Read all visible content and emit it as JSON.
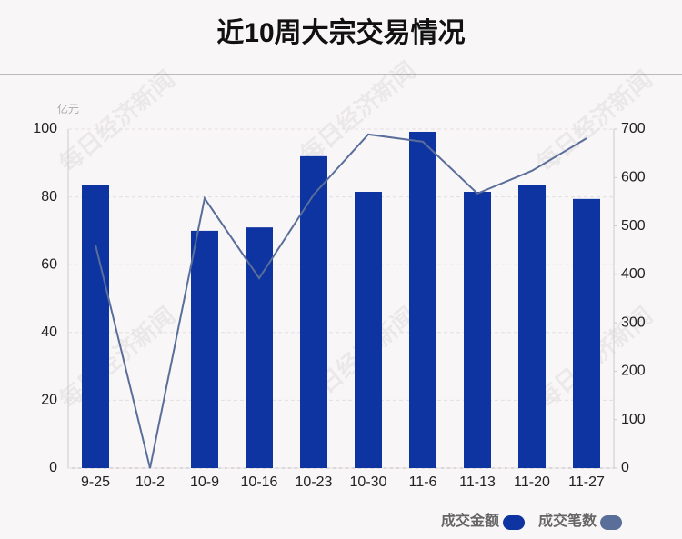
{
  "chart_data": {
    "type": "bar",
    "title": "近10周大宗交易情况",
    "y_unit": "亿元",
    "watermark": "每日经济新闻",
    "categories": [
      "9-25",
      "10-2",
      "10-9",
      "10-16",
      "10-23",
      "10-30",
      "11-6",
      "11-13",
      "11-20",
      "11-27"
    ],
    "series": [
      {
        "name": "成交金额",
        "type": "bar",
        "color": "#0d34a0",
        "values": [
          83.4,
          0,
          70.0,
          71.0,
          92.0,
          81.5,
          99.2,
          81.5,
          83.4,
          79.4
        ]
      },
      {
        "name": "成交笔数",
        "type": "line",
        "axis": "y2",
        "color": "#5a6e9a",
        "values": [
          461,
          0,
          557,
          392,
          565,
          689,
          674,
          567,
          614,
          681
        ]
      }
    ],
    "ylim": [
      0,
      100
    ],
    "yticks": [
      0,
      20,
      40,
      60,
      80,
      100
    ],
    "y2lim": [
      0,
      700
    ],
    "y2ticks": [
      0,
      100,
      200,
      300,
      400,
      500,
      600,
      700
    ],
    "grid": true
  }
}
